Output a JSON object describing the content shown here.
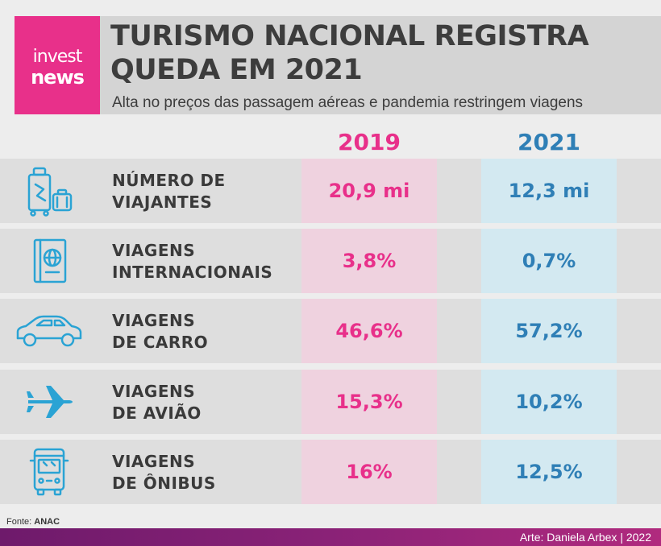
{
  "logo": {
    "line1": "invest",
    "line2": "news"
  },
  "title": {
    "line1": "TURISMO NACIONAL REGISTRA",
    "line2": "QUEDA EM 2021"
  },
  "subtitle": "Alta no preços das passagem aéreas e pandemia restringem viagens",
  "columns": [
    "2019",
    "2021"
  ],
  "colors": {
    "pink": "#e8308a",
    "blue": "#2f7fb6",
    "gray_text": "#3d3d3d"
  },
  "rows": [
    {
      "icon": "luggage-icon",
      "label_line1": "NÚMERO DE",
      "label_line2": "VIAJANTES",
      "v2019": "20,9 mi",
      "v2021": "12,3 mi"
    },
    {
      "icon": "passport-icon",
      "label_line1": "VIAGENS",
      "label_line2": "INTERNACIONAIS",
      "v2019": "3,8%",
      "v2021": "0,7%"
    },
    {
      "icon": "car-icon",
      "label_line1": "VIAGENS",
      "label_line2": "DE CARRO",
      "v2019": "46,6%",
      "v2021": "57,2%"
    },
    {
      "icon": "airplane-icon",
      "label_line1": "VIAGENS",
      "label_line2": "DE AVIÃO",
      "v2019": "15,3%",
      "v2021": "10,2%"
    },
    {
      "icon": "bus-icon",
      "label_line1": "VIAGENS",
      "label_line2": "DE ÔNIBUS",
      "v2019": "16%",
      "v2021": "12,5%"
    }
  ],
  "footer": {
    "source_prefix": "Fonte:",
    "source_name": "ANAC",
    "credit": "Arte: Daniela Arbex | 2022"
  }
}
